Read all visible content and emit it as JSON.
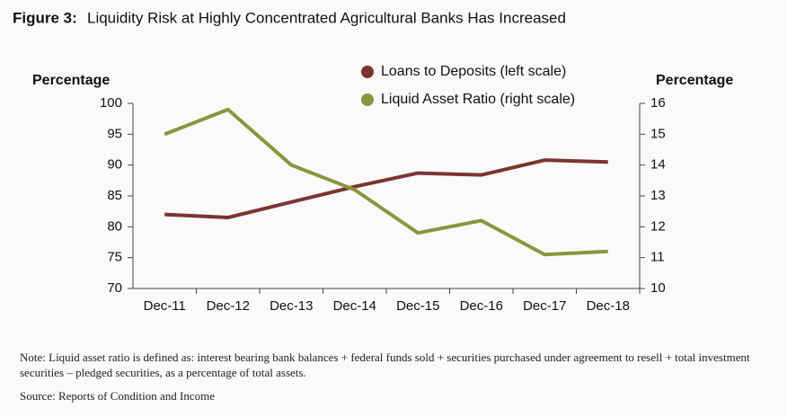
{
  "chart_data": {
    "type": "line",
    "figure_label": "Figure 3:",
    "title": "Liquidity Risk at Highly Concentrated Agricultural Banks Has Increased",
    "y_label": "Percentage",
    "y2_label": "Percentage",
    "categories": [
      "Dec-11",
      "Dec-12",
      "Dec-13",
      "Dec-14",
      "Dec-15",
      "Dec-16",
      "Dec-17",
      "Dec-18"
    ],
    "series": [
      {
        "name": "Loans to Deposits (left scale)",
        "color": "#7b3530",
        "values": [
          82,
          81.5,
          84,
          86.5,
          88.7,
          88.4,
          90.8,
          90.5
        ]
      },
      {
        "name": "Liquid Asset Ratio (right scale)",
        "color": "#86983c",
        "axis": "y2",
        "values": [
          15.0,
          15.8,
          14.0,
          13.2,
          11.8,
          12.2,
          11.1,
          11.2
        ]
      }
    ],
    "ylim": [
      70,
      100
    ],
    "yticks": [
      70,
      75,
      80,
      85,
      90,
      95,
      100
    ],
    "y2lim": [
      10,
      16
    ],
    "y2ticks": [
      10,
      11,
      12,
      13,
      14,
      15,
      16
    ],
    "grid": false,
    "note": "Note: Liquid asset ratio is defined as: interest bearing bank balances + federal funds sold + securities purchased under agreement to resell + total investment securities – pledged securities, as a percentage of total assets.",
    "source": "Source: Reports of Condition and Income"
  }
}
